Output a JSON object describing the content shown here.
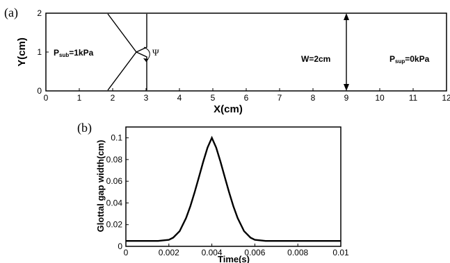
{
  "chart_data": [
    {
      "type": "diagram",
      "panel_label": "(a)",
      "xlabel": "X(cm)",
      "ylabel": "Y(cm)",
      "x_ticks": [
        0,
        1,
        2,
        3,
        4,
        5,
        6,
        7,
        8,
        9,
        10,
        11,
        12
      ],
      "y_ticks": [
        0,
        1,
        2
      ],
      "xlim": [
        0,
        12
      ],
      "ylim": [
        0,
        2
      ],
      "annotations": {
        "p_sub_main": "P",
        "p_sub_sub": "sub",
        "p_sub_value": "=1kPa",
        "p_sup_main": "P",
        "p_sup_sub": "sup",
        "p_sup_value": "=0kPa",
        "width": "W=2cm",
        "angle": "Ψ"
      }
    },
    {
      "type": "line",
      "panel_label": "(b)",
      "xlabel": "Time(s)",
      "ylabel": "Glottal gap width(cm)",
      "x_ticks": [
        "0",
        "0.002",
        "0.004",
        "0.006",
        "0.008",
        "0.01"
      ],
      "y_ticks": [
        "0",
        "0.02",
        "0.04",
        "0.06",
        "0.08",
        "0.1"
      ],
      "xlim": [
        0,
        0.01
      ],
      "ylim": [
        0,
        0.11
      ],
      "series": [
        {
          "x": [
            0,
            0.0005,
            0.001,
            0.0015,
            0.002,
            0.0022,
            0.0025,
            0.0028,
            0.003,
            0.0032,
            0.0034,
            0.0036,
            0.0038,
            0.004,
            0.0042,
            0.0044,
            0.0046,
            0.0048,
            0.005,
            0.0052,
            0.0055,
            0.0058,
            0.006,
            0.0065,
            0.007,
            0.008,
            0.009,
            0.01
          ],
          "y": [
            0.005,
            0.005,
            0.005,
            0.005,
            0.006,
            0.008,
            0.014,
            0.026,
            0.037,
            0.05,
            0.064,
            0.078,
            0.091,
            0.1,
            0.091,
            0.078,
            0.064,
            0.05,
            0.037,
            0.026,
            0.014,
            0.008,
            0.006,
            0.005,
            0.005,
            0.005,
            0.005,
            0.005
          ]
        }
      ]
    }
  ]
}
